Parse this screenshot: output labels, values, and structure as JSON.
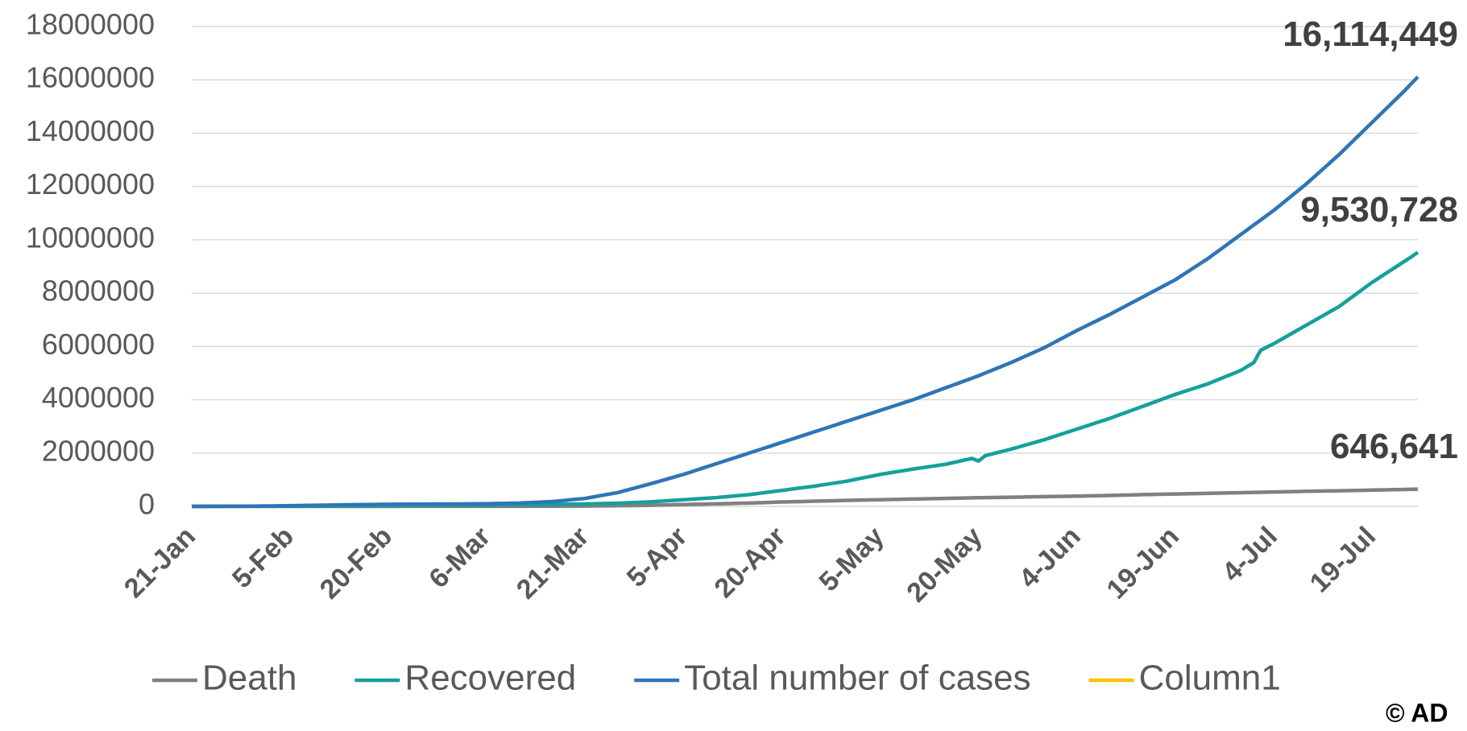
{
  "chart_data": {
    "type": "line",
    "categories": [
      "21-Jan",
      null,
      null,
      null,
      null,
      null,
      null,
      null,
      null,
      null,
      null,
      null,
      null,
      null,
      null,
      "5-Feb",
      null,
      null,
      null,
      null,
      null,
      null,
      null,
      null,
      null,
      null,
      null,
      null,
      null,
      null,
      "20-Feb",
      null,
      null,
      null,
      null,
      null,
      null,
      null,
      null,
      null,
      null,
      null,
      null,
      null,
      null,
      "6-Mar",
      null,
      null,
      null,
      null,
      null,
      null,
      null,
      null,
      null,
      null,
      null,
      null,
      null,
      null,
      "21-Mar",
      null,
      null,
      null,
      null,
      null,
      null,
      null,
      null,
      null,
      null,
      null,
      null,
      null,
      null,
      "5-Apr",
      null,
      null,
      null,
      null,
      null,
      null,
      null,
      null,
      null,
      null,
      null,
      null,
      null,
      null,
      "20-Apr",
      null,
      null,
      null,
      null,
      null,
      null,
      null,
      null,
      null,
      null,
      null,
      null,
      null,
      null,
      "5-May",
      null,
      null,
      null,
      null,
      null,
      null,
      null,
      null,
      null,
      null,
      null,
      null,
      null,
      null,
      "20-May",
      null,
      null,
      null,
      null,
      null,
      null,
      null,
      null,
      null,
      null,
      null,
      null,
      null,
      null,
      "4-Jun",
      null,
      null,
      null,
      null,
      null,
      null,
      null,
      null,
      null,
      null,
      null,
      null,
      null,
      null,
      "19-Jun",
      null,
      null,
      null,
      null,
      null,
      null,
      null,
      null,
      null,
      null,
      null,
      null,
      null,
      null,
      "4-Jul",
      null,
      null,
      null,
      null,
      null,
      null,
      null,
      null,
      null,
      null,
      null,
      null,
      null,
      null,
      "19-Jul",
      null,
      null,
      null,
      null,
      null,
      null,
      null
    ],
    "series": [
      {
        "name": "Death",
        "color": "#808080",
        "values": [
          6,
          30,
          55,
          80,
          105,
          130,
          155,
          180,
          205,
          230,
          255,
          280,
          305,
          330,
          355,
          380,
          405,
          430,
          455,
          480,
          500,
          625,
          750,
          875,
          1000,
          1125,
          1250,
          1375,
          1500,
          1625,
          1750,
          1875,
          2000,
          2125,
          2250,
          2375,
          2500,
          2625,
          2750,
          2875,
          3000,
          3150,
          3300,
          3450,
          3600,
          3750,
          3900,
          4050,
          4200,
          4350,
          4500,
          5100,
          5700,
          6300,
          6900,
          7500,
          8600,
          9700,
          10800,
          11900,
          13000,
          15400,
          17800,
          20200,
          22600,
          25000,
          28400,
          31800,
          35200,
          38600,
          42000,
          47400,
          52800,
          58200,
          63600,
          69000,
          74200,
          79400,
          84600,
          89800,
          95000,
          101000,
          107000,
          113000,
          119000,
          125000,
          133000,
          141000,
          149000,
          157000,
          165000,
          171000,
          177000,
          183000,
          189000,
          195000,
          201000,
          207000,
          213000,
          219000,
          225000,
          230000,
          235000,
          240000,
          245000,
          250000,
          255000,
          260000,
          265000,
          270000,
          275000,
          280000,
          285000,
          290000,
          295000,
          300000,
          305000,
          310000,
          315000,
          320000,
          325000,
          329000,
          333000,
          337000,
          341000,
          345000,
          349000,
          353000,
          357000,
          361000,
          365000,
          369000,
          373000,
          377000,
          381000,
          385000,
          390000,
          395000,
          400000,
          405000,
          410000,
          416000,
          422000,
          428000,
          434000,
          440000,
          445000,
          450000,
          455000,
          460000,
          465000,
          470000,
          475000,
          480000,
          485000,
          490000,
          495000,
          500000,
          505000,
          510000,
          515000,
          520000,
          525000,
          530000,
          535000,
          540000,
          545000,
          550000,
          555000,
          560000,
          565000,
          569000,
          573000,
          577000,
          581000,
          585000,
          590000,
          595000,
          600000,
          605000,
          610000,
          615000,
          620000,
          625000,
          630000,
          635000,
          641000,
          646641
        ],
        "value_labels": {
          "187": "646,641"
        }
      },
      {
        "name": "Recovered",
        "color": "#14a19a",
        "values": [
          0,
          750,
          1500,
          2250,
          3000,
          3750,
          4500,
          5250,
          6000,
          6750,
          7500,
          8250,
          9000,
          9750,
          10500,
          11250,
          12000,
          12750,
          13500,
          14250,
          15000,
          16500,
          18000,
          19500,
          21000,
          22500,
          24000,
          25500,
          27000,
          28500,
          30000,
          31500,
          33000,
          34500,
          36000,
          37500,
          39000,
          40500,
          42000,
          43500,
          45000,
          46500,
          48000,
          49500,
          51000,
          52500,
          54000,
          55500,
          57000,
          58500,
          60000,
          62000,
          64000,
          66000,
          68000,
          70000,
          74000,
          78000,
          82000,
          86000,
          90000,
          96000,
          102000,
          108000,
          114000,
          120000,
          130000,
          140000,
          150000,
          160000,
          170000,
          186000,
          202000,
          218000,
          234000,
          250000,
          266000,
          282000,
          298000,
          314000,
          330000,
          352000,
          374000,
          396000,
          418000,
          440000,
          472000,
          504000,
          536000,
          568000,
          600000,
          632000,
          664000,
          696000,
          728000,
          760000,
          798000,
          836000,
          874000,
          912000,
          950000,
          1000000,
          1050000,
          1100000,
          1150000,
          1200000,
          1240000,
          1280000,
          1320000,
          1360000,
          1400000,
          1436000,
          1472000,
          1508000,
          1544000,
          1580000,
          1635000,
          1690000,
          1745000,
          1800000,
          1700000,
          1900000,
          1962500,
          2025000,
          2087500,
          2150000,
          2220000,
          2290000,
          2360000,
          2430000,
          2500000,
          2580000,
          2660000,
          2740000,
          2820000,
          2900000,
          2980000,
          3060000,
          3140000,
          3220000,
          3300000,
          3390000,
          3480000,
          3570000,
          3660000,
          3750000,
          3840000,
          3930000,
          4020000,
          4110000,
          4200000,
          4280000,
          4360000,
          4440000,
          4520000,
          4600000,
          4700000,
          4800000,
          4900000,
          5000000,
          5100000,
          5250000,
          5400000,
          5850000,
          5980000,
          6100000,
          6240000,
          6380000,
          6520000,
          6660000,
          6800000,
          6940000,
          7080000,
          7220000,
          7360000,
          7500000,
          7680000,
          7860000,
          8040000,
          8220000,
          8400000,
          8560000,
          8720000,
          8880000,
          9040000,
          9200000,
          9360000,
          9530728
        ],
        "value_labels": {
          "187": "9,530,728"
        }
      },
      {
        "name": "Total number of cases",
        "color": "#2e75b6",
        "values": [
          300,
          1270,
          2240,
          3210,
          4180,
          5150,
          6120,
          7090,
          8060,
          9030,
          10000,
          13500,
          17000,
          20500,
          24000,
          27500,
          31000,
          34500,
          38000,
          41500,
          45000,
          48500,
          52000,
          55500,
          59000,
          62500,
          66000,
          69500,
          73000,
          76500,
          80000,
          80800,
          81600,
          82400,
          83200,
          84000,
          84800,
          85600,
          86400,
          87200,
          88000,
          90400,
          92800,
          95200,
          97600,
          100000,
          105000,
          110000,
          115000,
          120000,
          125000,
          136000,
          147000,
          158000,
          169000,
          180000,
          204000,
          228000,
          252000,
          276000,
          300000,
          344000,
          388000,
          432000,
          476000,
          520000,
          586000,
          652000,
          718000,
          784000,
          850000,
          920000,
          990000,
          1060000,
          1130000,
          1200000,
          1280000,
          1360000,
          1440000,
          1520000,
          1600000,
          1680000,
          1760000,
          1840000,
          1920000,
          2000000,
          2080000,
          2160000,
          2240000,
          2320000,
          2400000,
          2480000,
          2560000,
          2640000,
          2720000,
          2800000,
          2880000,
          2960000,
          3040000,
          3120000,
          3200000,
          3280000,
          3360000,
          3440000,
          3520000,
          3600000,
          3680000,
          3760000,
          3840000,
          3920000,
          4000000,
          4090000,
          4180000,
          4270000,
          4360000,
          4450000,
          4540000,
          4630000,
          4720000,
          4810000,
          4900000,
          5000000,
          5100000,
          5200000,
          5300000,
          5400000,
          5510000,
          5620000,
          5730000,
          5840000,
          5950000,
          6080000,
          6210000,
          6340000,
          6470000,
          6600000,
          6720000,
          6840000,
          6960000,
          7080000,
          7200000,
          7330000,
          7460000,
          7590000,
          7720000,
          7850000,
          7980000,
          8110000,
          8240000,
          8370000,
          8500000,
          8660000,
          8820000,
          8980000,
          9140000,
          9300000,
          9480000,
          9660000,
          9840000,
          10020000,
          10200000,
          10380000,
          10560000,
          10740000,
          10920000,
          11100000,
          11300000,
          11500000,
          11700000,
          11900000,
          12100000,
          12320000,
          12540000,
          12760000,
          12980000,
          13200000,
          13440000,
          13680000,
          13920000,
          14160000,
          14400000,
          14640000,
          14880000,
          15120000,
          15360000,
          15600000,
          15860000,
          16114449
        ],
        "value_labels": {
          "187": "16,114,449"
        }
      },
      {
        "name": "Column1",
        "color": "#ffc000",
        "values": [
          null,
          null,
          null,
          null,
          null,
          null,
          null,
          null,
          null,
          null,
          null,
          null,
          null,
          null,
          null,
          null,
          null,
          null,
          null,
          null,
          null,
          null,
          null,
          null,
          null,
          null,
          null,
          null,
          null,
          null,
          null,
          null,
          null,
          null,
          null,
          null,
          null,
          null,
          null,
          null,
          null,
          null,
          null,
          null,
          null,
          null,
          null,
          null,
          null,
          null,
          null,
          null,
          null,
          null,
          null,
          null,
          null,
          null,
          null,
          null,
          null,
          null,
          null,
          null,
          null,
          null,
          null,
          null,
          null,
          null,
          null,
          null,
          null,
          null,
          null,
          null,
          null,
          null,
          null,
          null,
          null,
          null,
          null,
          null,
          null,
          null,
          null,
          null,
          null,
          null,
          null,
          null,
          null,
          null,
          null,
          null,
          null,
          null,
          null,
          null,
          null,
          null,
          null,
          null,
          null,
          null,
          null,
          null,
          null,
          null,
          null,
          null,
          null,
          null,
          null,
          null,
          null,
          null,
          null,
          null,
          null,
          null,
          null,
          null,
          null,
          null,
          null,
          null,
          null,
          null,
          null,
          null,
          null,
          null,
          null,
          null,
          null,
          null,
          null,
          null,
          null,
          null,
          null,
          null,
          null,
          null,
          null,
          null,
          null,
          null,
          null,
          null,
          null,
          null,
          null,
          null,
          null,
          null,
          null,
          null,
          null,
          null,
          null,
          null,
          null,
          null,
          null,
          null,
          null,
          null,
          null,
          null,
          null,
          null,
          null,
          null,
          null,
          null,
          null,
          null,
          null,
          null,
          null,
          null,
          null,
          null,
          null,
          null
        ]
      }
    ],
    "ylim": [
      0,
      18000000
    ],
    "yticks": [
      0,
      2000000,
      4000000,
      6000000,
      8000000,
      10000000,
      12000000,
      14000000,
      16000000,
      18000000
    ],
    "grid": true,
    "legend": "bottom",
    "watermark": "© AD"
  }
}
